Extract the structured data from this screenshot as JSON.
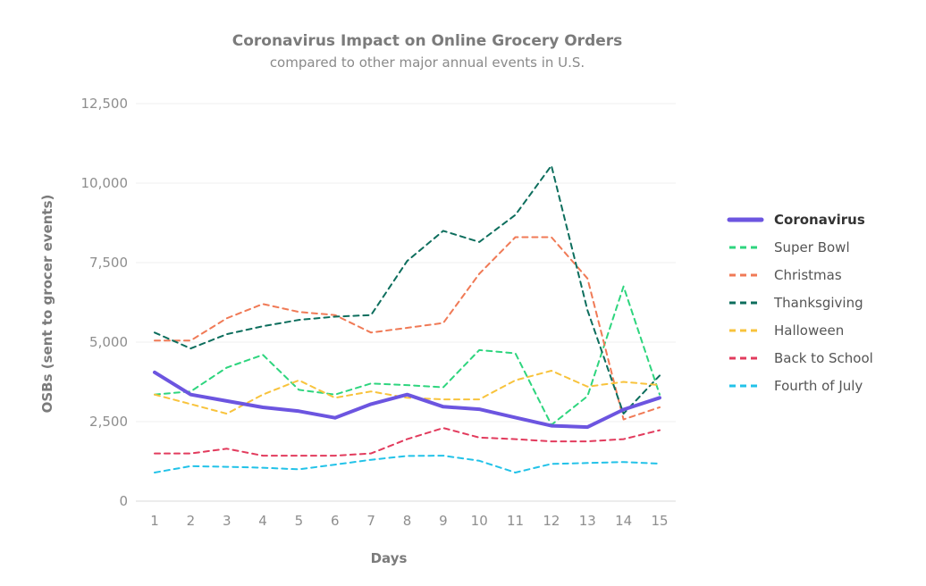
{
  "chart_data": {
    "type": "line",
    "title": "Coronavirus Impact on Online Grocery Orders",
    "subtitle": "compared to other major annual events in U.S.",
    "xlabel": "Days",
    "ylabel": "OSBs (sent to grocer events)",
    "x": [
      1,
      2,
      3,
      4,
      5,
      6,
      7,
      8,
      9,
      10,
      11,
      12,
      13,
      14,
      15
    ],
    "ylim": [
      0,
      12500
    ],
    "yticks": [
      0,
      2500,
      5000,
      7500,
      10000,
      12500
    ],
    "ytick_labels": [
      "0",
      "2,500",
      "5,000",
      "7,500",
      "10,000",
      "12,500"
    ],
    "grid": true,
    "legend_position": "right",
    "series": [
      {
        "name": "Coronavirus",
        "color": "#6c55e0",
        "style": "solid",
        "values": [
          4050,
          3350,
          3150,
          2950,
          2830,
          2620,
          3050,
          3350,
          2970,
          2890,
          2630,
          2370,
          2330,
          2880,
          3250
        ]
      },
      {
        "name": "Super Bowl",
        "color": "#2ed57e",
        "style": "dashed",
        "values": [
          3350,
          3450,
          4200,
          4600,
          3500,
          3350,
          3700,
          3650,
          3580,
          4750,
          4650,
          2400,
          3300,
          6750,
          3350
        ]
      },
      {
        "name": "Christmas",
        "color": "#f07a56",
        "style": "dashed",
        "values": [
          5050,
          5050,
          5750,
          6200,
          5950,
          5850,
          5300,
          5450,
          5600,
          7150,
          8300,
          8300,
          7000,
          2570,
          2950
        ]
      },
      {
        "name": "Thanksgiving",
        "color": "#0d6e5d",
        "style": "dashed",
        "values": [
          5300,
          4800,
          5250,
          5500,
          5700,
          5800,
          5850,
          7550,
          8500,
          8150,
          9000,
          10550,
          6000,
          2750,
          3950
        ]
      },
      {
        "name": "Halloween",
        "color": "#f8c33c",
        "style": "dashed",
        "values": [
          3350,
          3050,
          2750,
          3350,
          3800,
          3250,
          3450,
          3250,
          3200,
          3200,
          3800,
          4100,
          3600,
          3750,
          3650
        ]
      },
      {
        "name": "Back to School",
        "color": "#e23b5d",
        "style": "dashed",
        "values": [
          1500,
          1500,
          1650,
          1430,
          1430,
          1430,
          1500,
          1950,
          2300,
          2000,
          1950,
          1880,
          1880,
          1950,
          2230
        ]
      },
      {
        "name": "Fourth of July",
        "color": "#22c2e8",
        "style": "dashed",
        "values": [
          900,
          1100,
          1080,
          1050,
          1000,
          1150,
          1300,
          1420,
          1430,
          1270,
          900,
          1170,
          1200,
          1230,
          1180
        ]
      }
    ]
  }
}
